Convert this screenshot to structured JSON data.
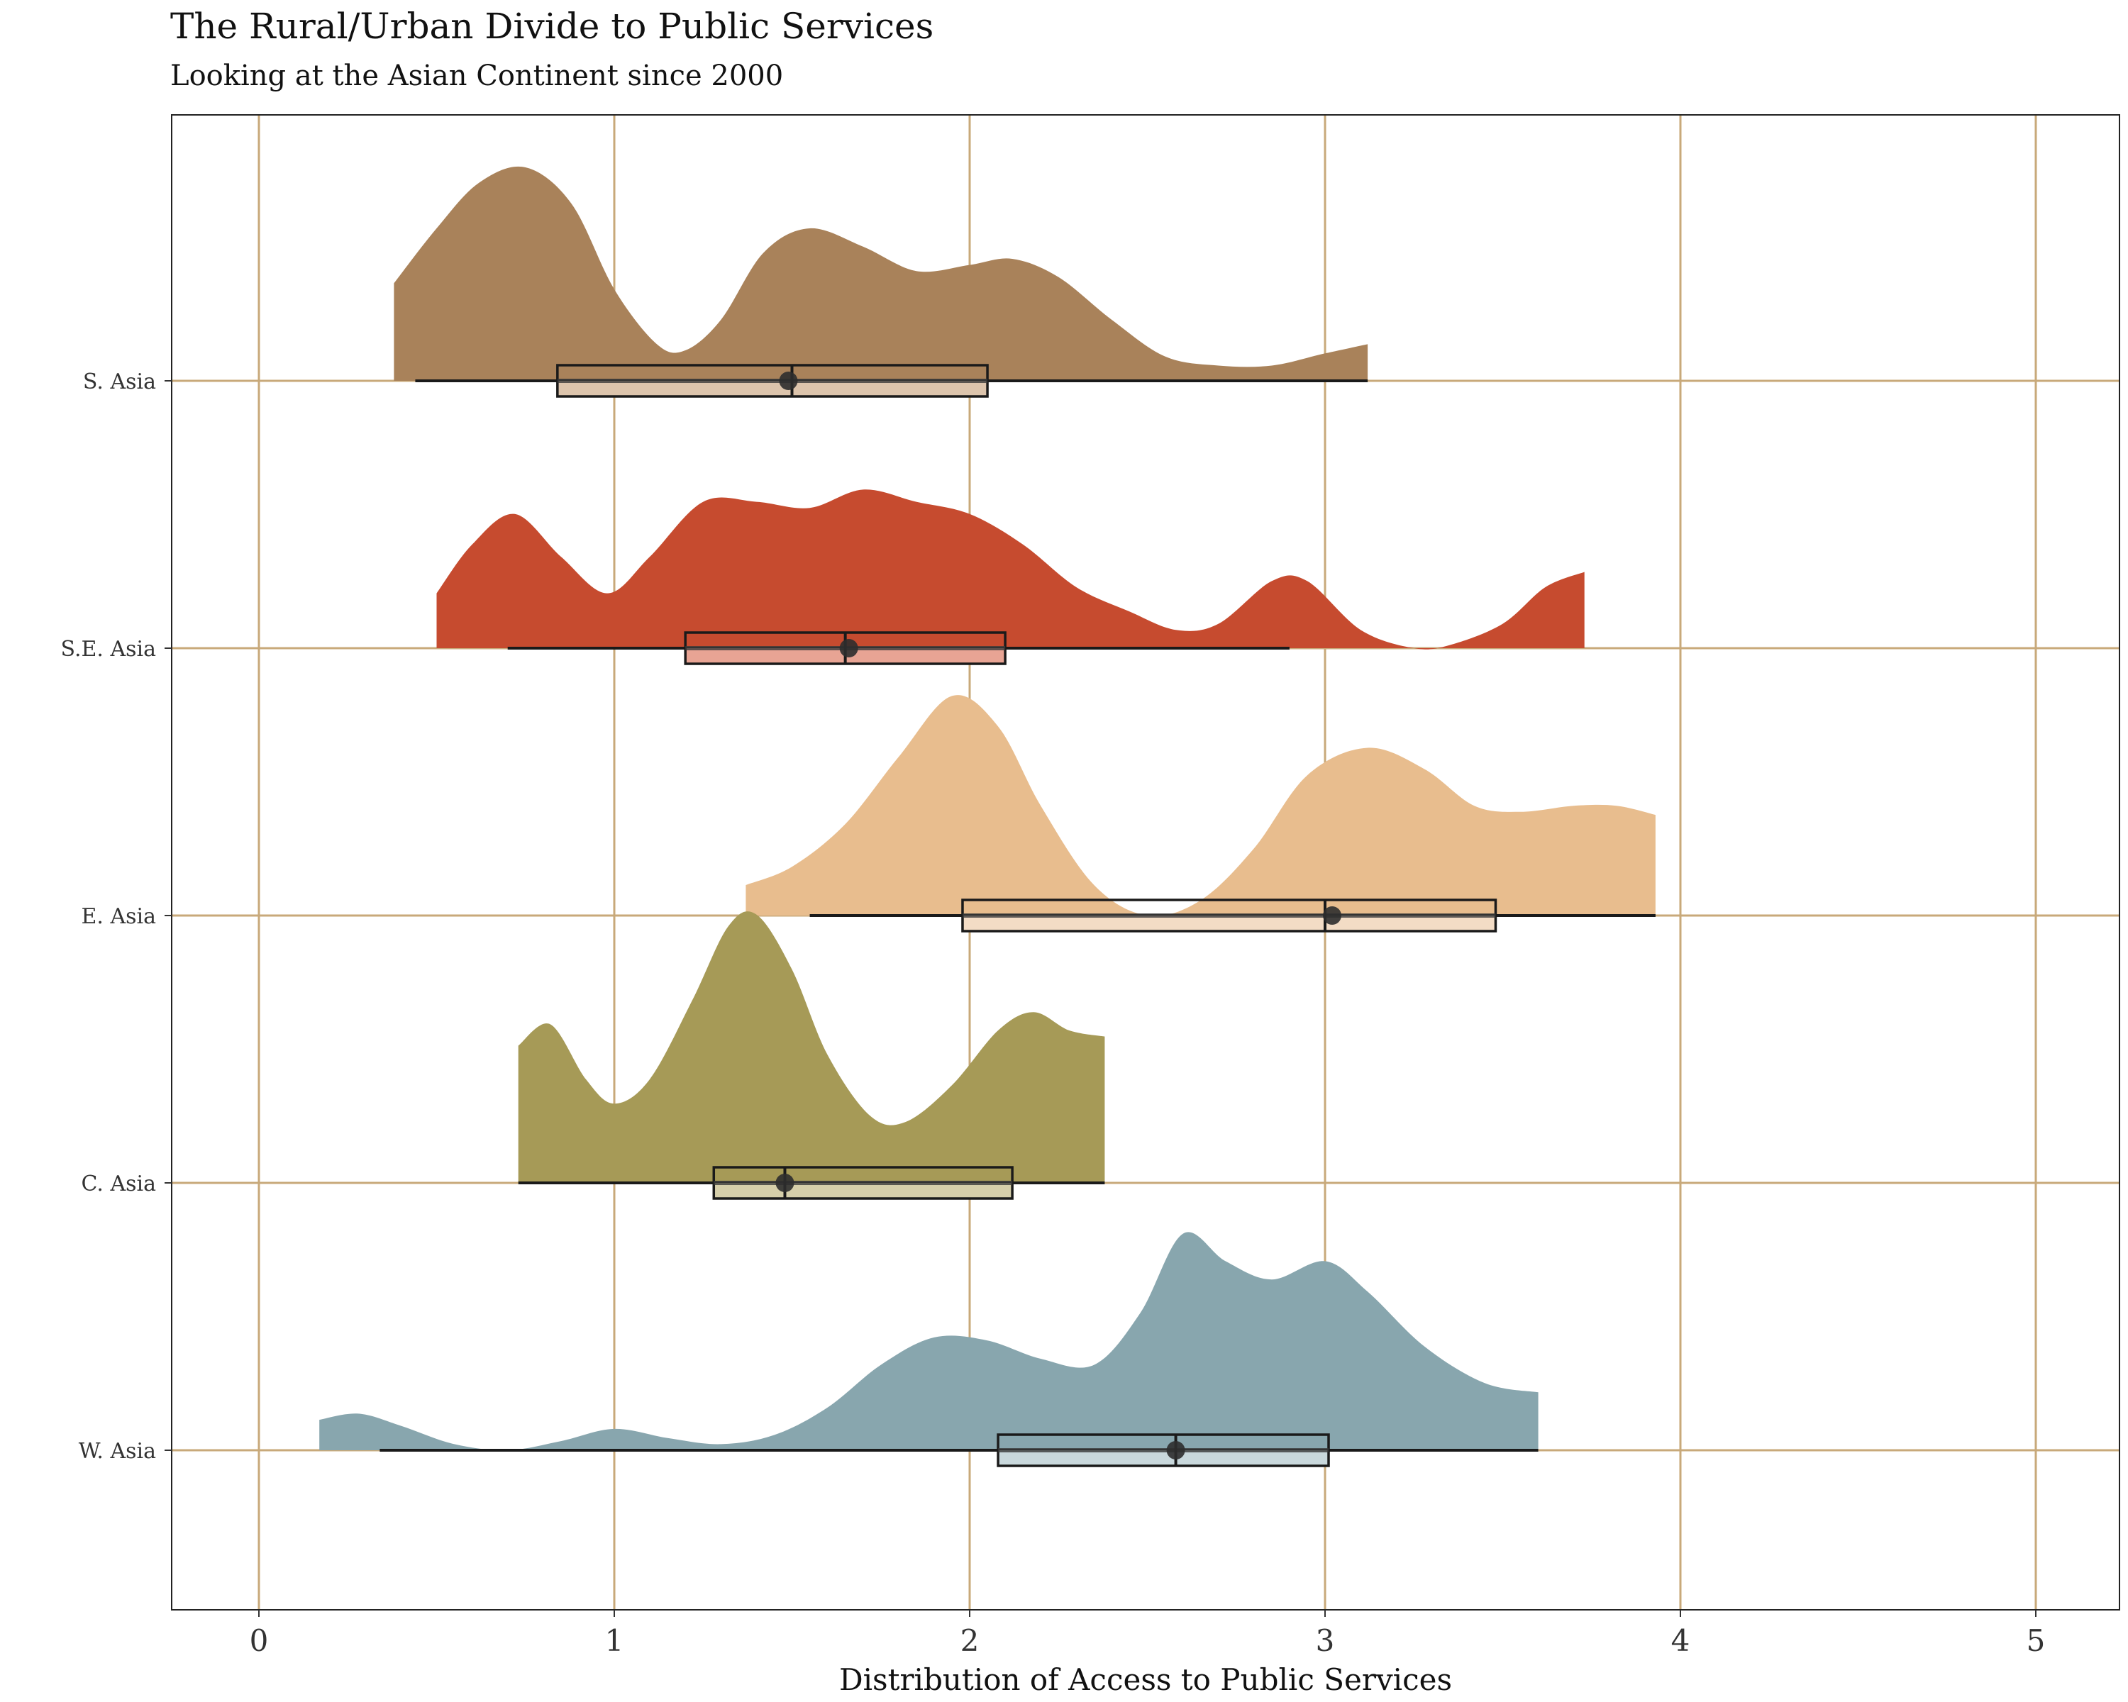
{
  "chart_data": {
    "type": "raincloud",
    "title": "The Rural/Urban Divide to Public Services",
    "subtitle": "Looking at the Asian Continent since 2000",
    "xlabel": "Distribution of Access to Public Services",
    "ylabel": "",
    "xlim": [
      -0.25,
      5.25
    ],
    "x_ticks": [
      "0",
      "1",
      "2",
      "3",
      "4",
      "5"
    ],
    "grid": true,
    "grid_color": "#c8a97a",
    "categories": [
      "S. Asia",
      "S.E. Asia",
      "E. Asia",
      "C. Asia",
      "W. Asia"
    ],
    "series": [
      {
        "name": "S. Asia",
        "color": "#a9825a",
        "box_fill": "#dcc4ac",
        "min": 0.38,
        "whisker_low": 0.44,
        "q1": 0.84,
        "median": 1.5,
        "mean": 1.49,
        "q3": 2.05,
        "whisker_high": 3.12,
        "max": 3.12,
        "density": [
          [
            0.38,
            0.32
          ],
          [
            0.5,
            0.5
          ],
          [
            0.62,
            0.65
          ],
          [
            0.75,
            0.7
          ],
          [
            0.88,
            0.58
          ],
          [
            1.0,
            0.3
          ],
          [
            1.12,
            0.12
          ],
          [
            1.2,
            0.1
          ],
          [
            1.3,
            0.2
          ],
          [
            1.42,
            0.42
          ],
          [
            1.55,
            0.5
          ],
          [
            1.7,
            0.44
          ],
          [
            1.85,
            0.36
          ],
          [
            2.0,
            0.38
          ],
          [
            2.12,
            0.4
          ],
          [
            2.25,
            0.34
          ],
          [
            2.4,
            0.2
          ],
          [
            2.55,
            0.08
          ],
          [
            2.7,
            0.05
          ],
          [
            2.85,
            0.05
          ],
          [
            3.0,
            0.09
          ],
          [
            3.12,
            0.12
          ]
        ]
      },
      {
        "name": "S.E. Asia",
        "color": "#c64b2f",
        "box_fill": "#e8a494",
        "min": 0.5,
        "whisker_low": 0.7,
        "q1": 1.2,
        "median": 1.65,
        "mean": 1.66,
        "q3": 2.1,
        "whisker_high": 2.9,
        "max": 3.73,
        "density": [
          [
            0.5,
            0.18
          ],
          [
            0.6,
            0.34
          ],
          [
            0.72,
            0.44
          ],
          [
            0.85,
            0.3
          ],
          [
            0.98,
            0.18
          ],
          [
            1.1,
            0.3
          ],
          [
            1.25,
            0.48
          ],
          [
            1.4,
            0.48
          ],
          [
            1.55,
            0.46
          ],
          [
            1.7,
            0.52
          ],
          [
            1.85,
            0.48
          ],
          [
            2.0,
            0.44
          ],
          [
            2.15,
            0.34
          ],
          [
            2.3,
            0.2
          ],
          [
            2.45,
            0.12
          ],
          [
            2.58,
            0.06
          ],
          [
            2.7,
            0.08
          ],
          [
            2.85,
            0.22
          ],
          [
            2.95,
            0.22
          ],
          [
            3.1,
            0.06
          ],
          [
            3.25,
            0.0
          ],
          [
            3.35,
            0.01
          ],
          [
            3.5,
            0.08
          ],
          [
            3.62,
            0.2
          ],
          [
            3.73,
            0.25
          ]
        ]
      },
      {
        "name": "E. Asia",
        "color": "#e8bd8e",
        "box_fill": "#f3dcc5",
        "min": 1.37,
        "whisker_low": 1.55,
        "q1": 1.98,
        "median": 3.0,
        "mean": 3.02,
        "q3": 3.48,
        "whisker_high": 3.93,
        "max": 3.93,
        "density": [
          [
            1.37,
            0.1
          ],
          [
            1.5,
            0.16
          ],
          [
            1.65,
            0.3
          ],
          [
            1.8,
            0.52
          ],
          [
            1.95,
            0.72
          ],
          [
            2.08,
            0.62
          ],
          [
            2.2,
            0.36
          ],
          [
            2.35,
            0.1
          ],
          [
            2.5,
            0.0
          ],
          [
            2.65,
            0.05
          ],
          [
            2.8,
            0.22
          ],
          [
            2.95,
            0.46
          ],
          [
            3.12,
            0.55
          ],
          [
            3.28,
            0.48
          ],
          [
            3.42,
            0.36
          ],
          [
            3.55,
            0.34
          ],
          [
            3.7,
            0.36
          ],
          [
            3.82,
            0.36
          ],
          [
            3.93,
            0.33
          ]
        ]
      },
      {
        "name": "C. Asia",
        "color": "#a69a57",
        "box_fill": "#d6cfaa",
        "min": 0.73,
        "whisker_low": 0.73,
        "q1": 1.28,
        "median": 1.48,
        "mean": 1.48,
        "q3": 2.12,
        "whisker_high": 2.38,
        "max": 2.38,
        "density": [
          [
            0.73,
            0.45
          ],
          [
            0.82,
            0.52
          ],
          [
            0.92,
            0.34
          ],
          [
            1.0,
            0.26
          ],
          [
            1.1,
            0.34
          ],
          [
            1.22,
            0.6
          ],
          [
            1.32,
            0.84
          ],
          [
            1.4,
            0.88
          ],
          [
            1.5,
            0.7
          ],
          [
            1.6,
            0.42
          ],
          [
            1.72,
            0.22
          ],
          [
            1.82,
            0.2
          ],
          [
            1.95,
            0.32
          ],
          [
            2.08,
            0.5
          ],
          [
            2.18,
            0.56
          ],
          [
            2.28,
            0.5
          ],
          [
            2.38,
            0.48
          ]
        ]
      },
      {
        "name": "W. Asia",
        "color": "#88a6ae",
        "box_fill": "#c9d8dc",
        "min": 0.17,
        "whisker_low": 0.34,
        "q1": 2.08,
        "median": 2.58,
        "mean": 2.58,
        "q3": 3.01,
        "whisker_high": 3.6,
        "max": 3.6,
        "density": [
          [
            0.17,
            0.1
          ],
          [
            0.28,
            0.12
          ],
          [
            0.4,
            0.08
          ],
          [
            0.55,
            0.02
          ],
          [
            0.7,
            0.0
          ],
          [
            0.85,
            0.03
          ],
          [
            1.0,
            0.07
          ],
          [
            1.15,
            0.04
          ],
          [
            1.3,
            0.02
          ],
          [
            1.45,
            0.05
          ],
          [
            1.6,
            0.14
          ],
          [
            1.75,
            0.28
          ],
          [
            1.9,
            0.37
          ],
          [
            2.05,
            0.36
          ],
          [
            2.2,
            0.3
          ],
          [
            2.35,
            0.28
          ],
          [
            2.48,
            0.45
          ],
          [
            2.6,
            0.71
          ],
          [
            2.72,
            0.62
          ],
          [
            2.85,
            0.56
          ],
          [
            3.0,
            0.62
          ],
          [
            3.12,
            0.52
          ],
          [
            3.28,
            0.34
          ],
          [
            3.45,
            0.22
          ],
          [
            3.6,
            0.19
          ]
        ]
      }
    ]
  }
}
